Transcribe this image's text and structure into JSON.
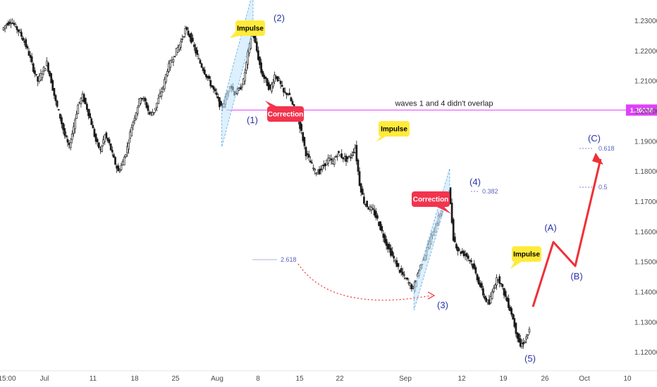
{
  "chart_data": {
    "type": "line",
    "title": "",
    "xlabel": "",
    "ylabel": "",
    "ylim": [
      1.1155,
      1.2355
    ],
    "y_ticks": [
      "1.23000",
      "1.22000",
      "1.21000",
      "1.20000",
      "1.19000",
      "1.18000",
      "1.17000",
      "1.16000",
      "1.15000",
      "1.14000",
      "1.13000",
      "1.12000"
    ],
    "x_ticks": [
      "15:00",
      "Jul",
      "11",
      "18",
      "25",
      "Aug",
      "8",
      "15",
      "22",
      "Sep",
      "12",
      "19",
      "26",
      "Oct",
      "10"
    ],
    "price_label": "1.20038",
    "price_level": 1.20038,
    "grid": false,
    "series": [
      {
        "values": [
          1.227,
          1.229,
          1.23,
          1.228,
          1.226,
          1.223,
          1.219,
          1.214,
          1.21,
          1.213,
          1.216,
          1.21,
          1.203,
          1.198,
          1.192,
          1.188,
          1.195,
          1.202,
          1.205,
          1.201,
          1.196,
          1.19,
          1.187,
          1.192,
          1.189,
          1.184,
          1.18,
          1.183,
          1.188,
          1.195,
          1.2,
          1.205,
          1.203,
          1.199,
          1.2,
          1.204,
          1.208,
          1.214,
          1.217,
          1.22,
          1.223,
          1.227,
          1.225,
          1.221,
          1.217,
          1.214,
          1.211,
          1.208,
          1.205,
          1.201,
          1.204,
          1.209,
          1.206,
          1.207,
          1.21,
          1.219,
          1.227,
          1.22,
          1.213,
          1.21,
          1.207,
          1.212,
          1.21,
          1.206,
          1.206,
          1.202,
          1.199,
          1.193,
          1.186,
          1.183,
          1.18,
          1.18,
          1.182,
          1.184,
          1.183,
          1.186,
          1.185,
          1.184,
          1.185,
          1.188,
          1.176,
          1.17,
          1.168,
          1.167,
          1.164,
          1.16,
          1.156,
          1.153,
          1.15,
          1.147,
          1.145,
          1.143,
          1.141,
          1.146,
          1.15,
          1.154,
          1.158,
          1.162,
          1.166,
          1.17,
          1.174,
          1.158,
          1.154,
          1.153,
          1.152,
          1.15,
          1.146,
          1.142,
          1.138,
          1.136,
          1.142,
          1.145,
          1.141,
          1.137,
          1.133,
          1.127,
          1.122,
          1.124,
          1.127
        ]
      }
    ],
    "waves": [
      {
        "label": "(1)",
        "color": "#2a35a8"
      },
      {
        "label": "(2)",
        "color": "#2a35a8"
      },
      {
        "label": "(3)",
        "color": "#2a35a8"
      },
      {
        "label": "(4)",
        "color": "#2a35a8"
      },
      {
        "label": "(5)",
        "color": "#2a35a8"
      },
      {
        "label": "(A)",
        "color": "#2a35a8"
      },
      {
        "label": "(B)",
        "color": "#2a35a8"
      },
      {
        "label": "(C)",
        "color": "#2a35a8"
      }
    ],
    "annotations": {
      "impulse": "Impulse",
      "correction": "Correction",
      "overlap_note": "waves 1 and 4 didn't overlap",
      "fib_2618": "2.618",
      "fib_0382": "0.382",
      "fib_05": "0.5",
      "fib_0618": "0.618"
    },
    "colors": {
      "candle": "#1a1a1a",
      "projection": "#f03036",
      "level_line": "#e040fb",
      "price_label_bg": "#e040fb",
      "impulse_bg": "#ffeb3b",
      "correction_bg": "#f2344e",
      "channel_fill": "#bfe3fb",
      "channel_border": "#5aa8e6",
      "fib": "#5a62c0",
      "dotted_arrow": "#f03036"
    }
  }
}
